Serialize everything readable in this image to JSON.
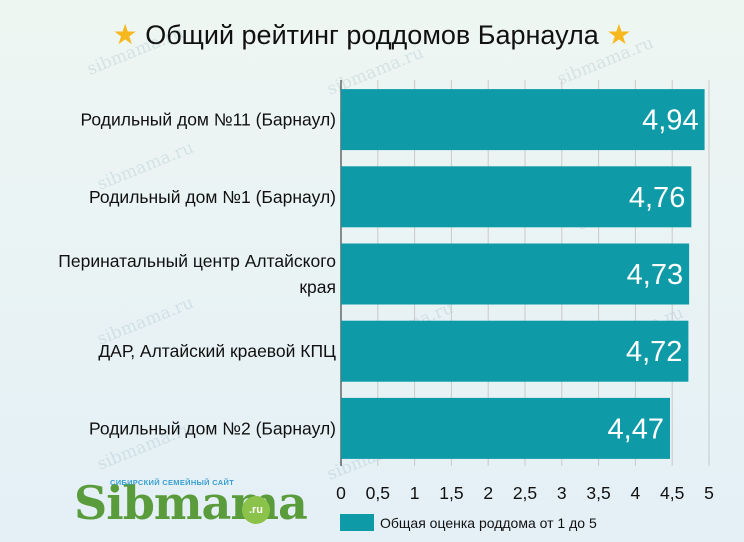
{
  "title": "Общий рейтинг роддомов Барнаула",
  "title_icon": "star-icon",
  "watermark": "sibmama.ru",
  "logo": {
    "brand": "Sibmama",
    "tagline": "СИБИРСКИЙ СЕМЕЙНЫЙ САЙТ",
    "suffix": ".ru"
  },
  "colors": {
    "bar": "#0e9aa7",
    "star": "#f6b81e",
    "logo_green": "#5a9b3c"
  },
  "chart_data": {
    "type": "bar",
    "orientation": "horizontal",
    "categories": [
      [
        "Родильный дом №11 (Барнаул)"
      ],
      [
        "Родильный дом №1 (Барнаул)"
      ],
      [
        "Перинатальный центр Алтайского",
        "края"
      ],
      [
        "ДАР, Алтайский краевой КПЦ"
      ],
      [
        "Родильный дом №2 (Барнаул)"
      ]
    ],
    "values": [
      4.94,
      4.76,
      4.73,
      4.72,
      4.47
    ],
    "value_labels": [
      "4,94",
      "4,76",
      "4,73",
      "4,72",
      "4,47"
    ],
    "xlim": [
      0,
      5
    ],
    "ticks": [
      0,
      0.5,
      1,
      1.5,
      2,
      2.5,
      3,
      3.5,
      4,
      4.5,
      5
    ],
    "tick_labels": [
      "0",
      "0,5",
      "1",
      "1,5",
      "2",
      "2,5",
      "3",
      "3,5",
      "4",
      "4,5",
      "5"
    ],
    "grid": true,
    "legend": {
      "position": "bottom",
      "entries": [
        "Общая оценка роддома от 1 до 5"
      ]
    }
  }
}
